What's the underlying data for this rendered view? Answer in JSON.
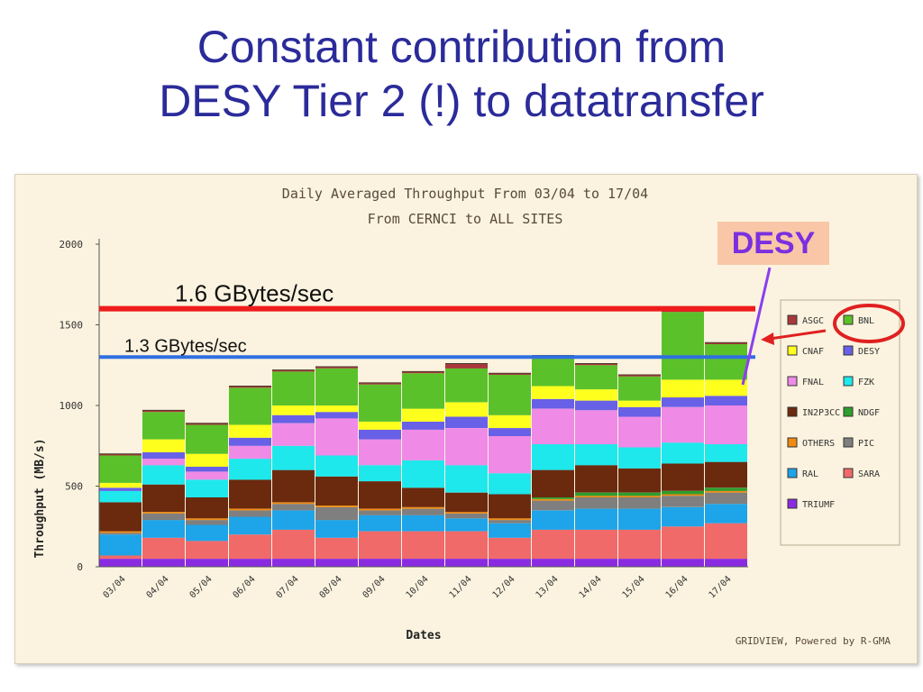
{
  "slide": {
    "title_line1": "Constant contribution from",
    "title_line2": "DESY Tier 2 (!) to datatransfer"
  },
  "callouts": {
    "desy_label": "DESY",
    "line_high_label": "1.6 GBytes/sec",
    "line_high_value": 1600,
    "line_high_color": "#ee1c1c",
    "line_low_label": "1.3 GBytes/sec",
    "line_low_value": 1300,
    "line_low_color": "#2f6fe0",
    "arrow_color": "#e02020",
    "pointer_color": "#8a3ff0"
  },
  "chart_data": {
    "type": "bar",
    "stacked": true,
    "title": "Daily Averaged Throughput From 03/04 to 17/04",
    "subtitle": "From CERNCI to ALL SITES",
    "xlabel": "Dates",
    "ylabel": "Throughput (MB/s)",
    "ylim": [
      0,
      2000
    ],
    "yticks": [
      0,
      500,
      1000,
      1500,
      2000
    ],
    "grid": false,
    "legend_position": "right",
    "footer": "GRIDVIEW, Powered by R-GMA",
    "categories": [
      "03/04",
      "04/04",
      "05/04",
      "06/04",
      "07/04",
      "08/04",
      "09/04",
      "10/04",
      "11/04",
      "12/04",
      "13/04",
      "14/04",
      "15/04",
      "16/04",
      "17/04"
    ],
    "series": [
      {
        "name": "TRIUMF",
        "color": "#8a2be2",
        "values": [
          50,
          50,
          50,
          50,
          50,
          50,
          50,
          50,
          50,
          50,
          50,
          50,
          50,
          50,
          50
        ]
      },
      {
        "name": "SARA",
        "color": "#f06a6a",
        "values": [
          20,
          130,
          110,
          150,
          180,
          130,
          170,
          170,
          170,
          130,
          180,
          180,
          180,
          200,
          220
        ]
      },
      {
        "name": "RAL",
        "color": "#1ea4e8",
        "values": [
          130,
          110,
          100,
          110,
          120,
          110,
          100,
          100,
          80,
          90,
          120,
          130,
          130,
          120,
          120
        ]
      },
      {
        "name": "PIC",
        "color": "#7f7f7f",
        "values": [
          10,
          40,
          30,
          40,
          40,
          80,
          30,
          40,
          30,
          20,
          60,
          70,
          70,
          70,
          70
        ]
      },
      {
        "name": "OTHERS",
        "color": "#f08a10",
        "values": [
          10,
          10,
          10,
          10,
          10,
          10,
          10,
          10,
          10,
          10,
          10,
          10,
          10,
          10,
          10
        ]
      },
      {
        "name": "NDGF",
        "color": "#2e9e2e",
        "values": [
          0,
          0,
          0,
          0,
          0,
          0,
          0,
          0,
          0,
          0,
          10,
          20,
          20,
          20,
          20
        ]
      },
      {
        "name": "IN2P3CC",
        "color": "#6b2a0e",
        "values": [
          180,
          170,
          130,
          180,
          200,
          180,
          170,
          120,
          120,
          150,
          170,
          170,
          150,
          170,
          160
        ]
      },
      {
        "name": "FZK",
        "color": "#1ee8ec",
        "values": [
          70,
          120,
          110,
          130,
          150,
          130,
          100,
          170,
          170,
          130,
          160,
          130,
          130,
          130,
          110
        ]
      },
      {
        "name": "FNAL",
        "color": "#ef8ae6",
        "values": [
          0,
          40,
          50,
          80,
          140,
          230,
          160,
          190,
          230,
          230,
          220,
          210,
          190,
          220,
          240
        ]
      },
      {
        "name": "DESY",
        "color": "#6860e6",
        "values": [
          20,
          40,
          30,
          50,
          50,
          40,
          60,
          50,
          70,
          50,
          60,
          60,
          60,
          60,
          60
        ]
      },
      {
        "name": "CNAF",
        "color": "#ffff1e",
        "values": [
          30,
          80,
          80,
          80,
          60,
          40,
          50,
          80,
          90,
          80,
          80,
          70,
          40,
          110,
          100
        ]
      },
      {
        "name": "BNL",
        "color": "#5bc12a",
        "values": [
          170,
          170,
          180,
          230,
          210,
          230,
          230,
          220,
          210,
          250,
          170,
          150,
          150,
          420,
          220
        ]
      },
      {
        "name": "ASGC",
        "color": "#a8383a",
        "values": [
          10,
          10,
          10,
          10,
          10,
          10,
          10,
          10,
          30,
          10,
          20,
          10,
          10,
          10,
          10
        ]
      }
    ]
  }
}
